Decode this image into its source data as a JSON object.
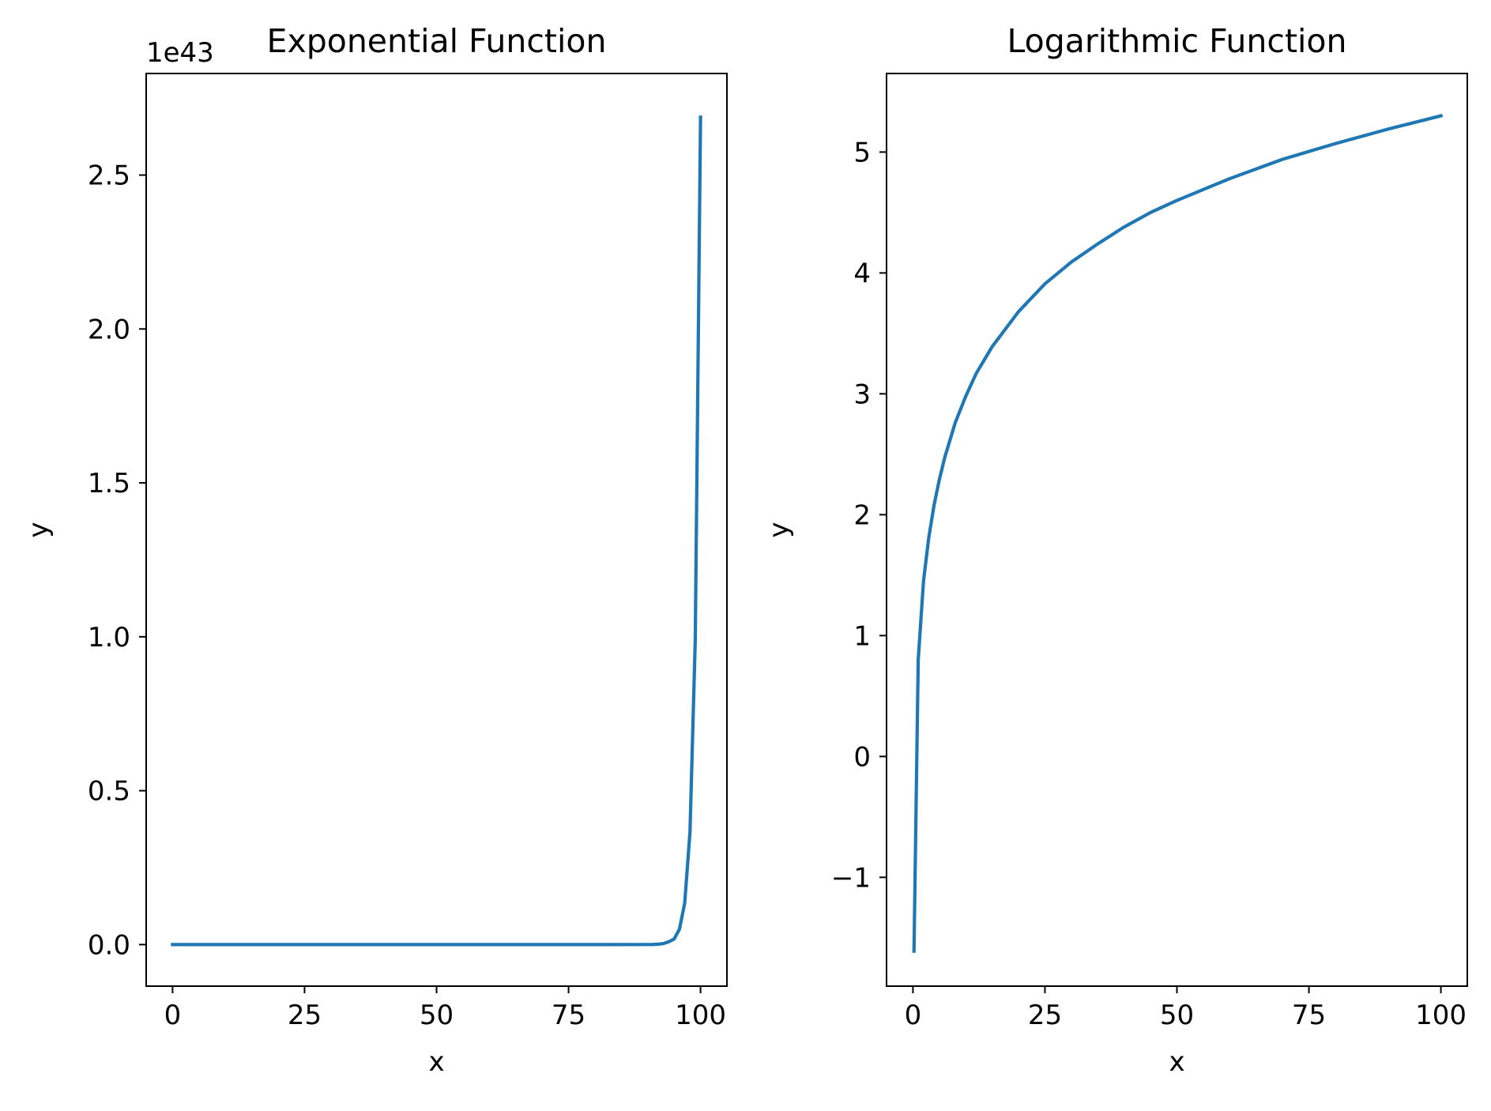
{
  "chart_data": [
    {
      "type": "line",
      "title": "Exponential Function",
      "xlabel": "x",
      "ylabel": "y",
      "offset_text": "1e43",
      "xlim": [
        -5,
        105
      ],
      "ylim": [
        -0.135,
        2.83
      ],
      "xticks": [
        0,
        25,
        50,
        75,
        100
      ],
      "xtick_labels": [
        "0",
        "25",
        "50",
        "75",
        "100"
      ],
      "yticks": [
        0.0,
        0.5,
        1.0,
        1.5,
        2.0,
        2.5
      ],
      "ytick_labels": [
        "0.0",
        "0.5",
        "1.0",
        "1.5",
        "2.0",
        "2.5"
      ],
      "series": [
        {
          "color": "#1f77b4",
          "x": [
            0,
            10,
            20,
            30,
            40,
            50,
            60,
            70,
            80,
            90,
            91,
            92,
            93,
            94,
            95,
            96,
            97,
            98,
            99,
            100
          ],
          "y": [
            0,
            0,
            0,
            0,
            0,
            0,
            0,
            0,
            0,
            0.0002,
            0.0005,
            0.0013,
            0.0035,
            0.0095,
            0.0182,
            0.0495,
            0.1346,
            0.3649,
            0.9892,
            2.6881
          ]
        }
      ]
    },
    {
      "type": "line",
      "title": "Logarithmic Function",
      "xlabel": "x",
      "ylabel": "y",
      "xlim": [
        -5,
        105
      ],
      "ylim": [
        -1.9,
        5.65
      ],
      "xticks": [
        0,
        25,
        50,
        75,
        100
      ],
      "xtick_labels": [
        "0",
        "25",
        "50",
        "75",
        "100"
      ],
      "yticks": [
        -1,
        0,
        1,
        2,
        3,
        4,
        5
      ],
      "ytick_labels": [
        "−1",
        "0",
        "1",
        "2",
        "3",
        "4",
        "5"
      ],
      "series": [
        {
          "color": "#1f77b4",
          "x": [
            0.2,
            1,
            2,
            3,
            4,
            5,
            6,
            8,
            10,
            12,
            15,
            20,
            25,
            30,
            35,
            40,
            45,
            50,
            60,
            70,
            80,
            90,
            100
          ],
          "y": [
            -1.61,
            0.8,
            1.45,
            1.81,
            2.08,
            2.29,
            2.47,
            2.76,
            2.98,
            3.17,
            3.39,
            3.68,
            3.91,
            4.09,
            4.24,
            4.38,
            4.5,
            4.6,
            4.78,
            4.94,
            5.07,
            5.19,
            5.3
          ]
        }
      ]
    }
  ]
}
